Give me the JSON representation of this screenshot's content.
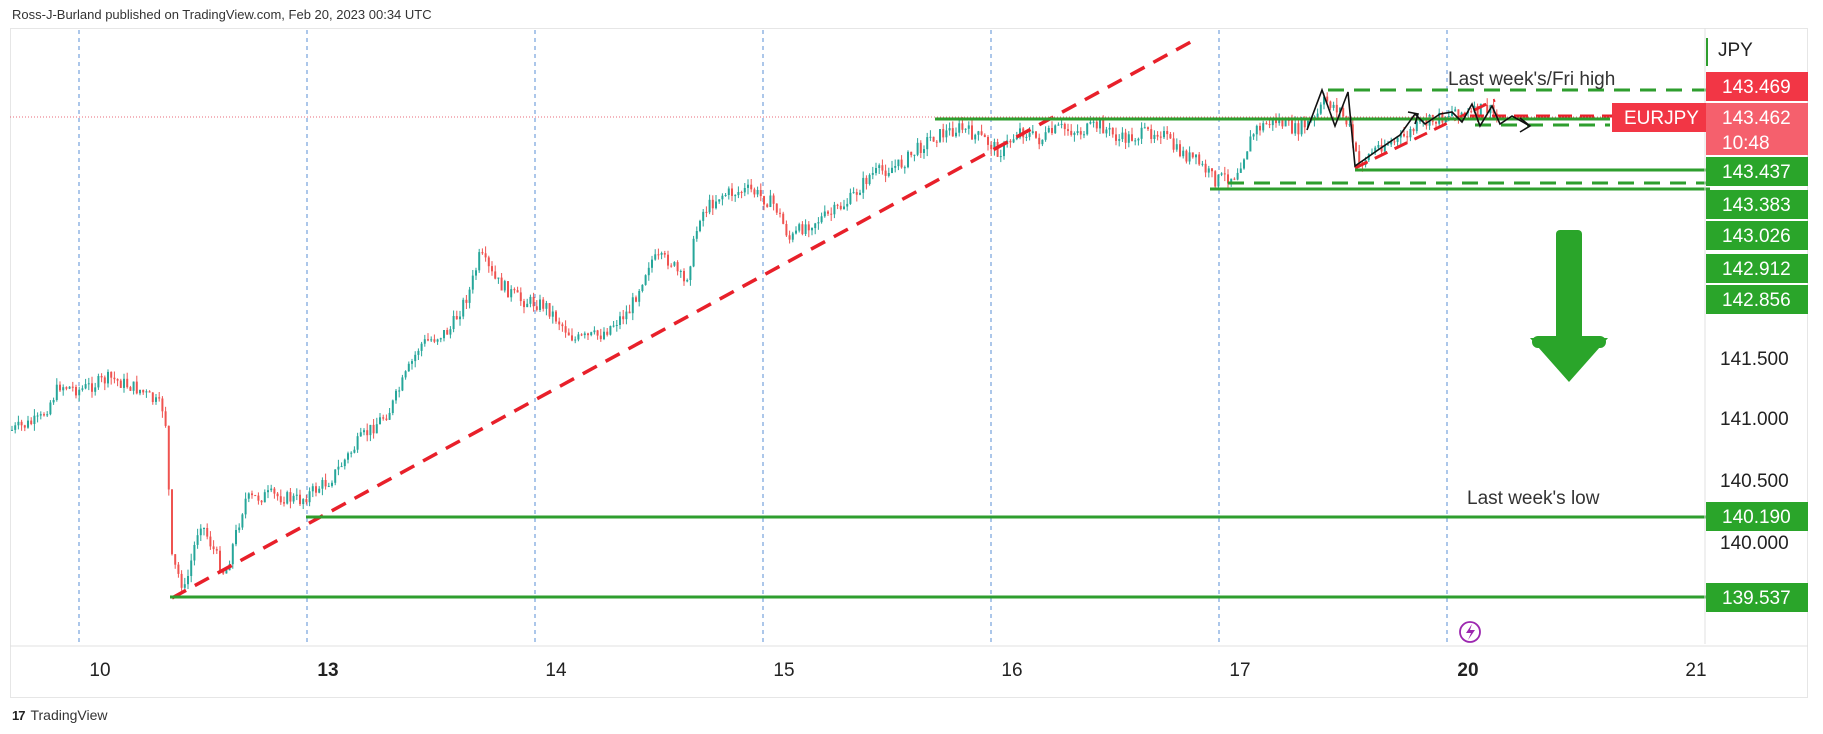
{
  "publisher": "Ross-J-Burland published on TradingView.com, Feb 20, 2023 00:34 UTC",
  "footer": {
    "brand": "TradingView"
  },
  "chart_data": {
    "type": "candlestick",
    "symbol": "EURJPY",
    "currency": "JPY",
    "countdown": "10:48",
    "y_ticks": [
      "141.500",
      "141.000",
      "140.500",
      "140.000"
    ],
    "x_ticks": [
      "10",
      "13",
      "14",
      "15",
      "16",
      "17",
      "20",
      "21"
    ],
    "ylim": [
      139.35,
      143.85
    ],
    "price_labels": [
      {
        "value": "143.469",
        "style": "red"
      },
      {
        "value": "143.462",
        "style": "red-light",
        "symbol_tag": "EURJPY"
      },
      {
        "value": "143.437",
        "style": "green"
      },
      {
        "value": "143.383",
        "style": "green"
      },
      {
        "value": "143.026",
        "style": "green"
      },
      {
        "value": "142.912",
        "style": "green"
      },
      {
        "value": "142.856",
        "style": "green"
      },
      {
        "value": "140.190",
        "style": "green"
      },
      {
        "value": "139.537",
        "style": "green"
      }
    ],
    "annotations": [
      {
        "text": "Last week's/Fri high"
      },
      {
        "text": "Last week's low"
      }
    ],
    "colors": {
      "up": "#26a69a",
      "down": "#ef5350",
      "level": "#2e9e2e",
      "trend": "#e8202a",
      "grid": "#5a8fd6"
    }
  }
}
